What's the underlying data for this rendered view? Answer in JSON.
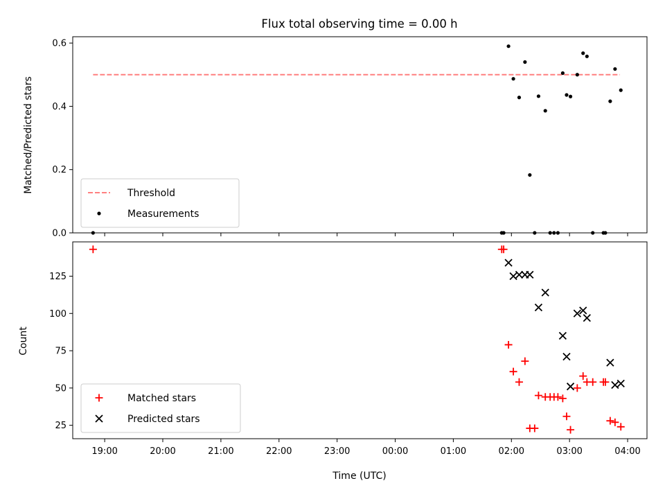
{
  "chart_data": [
    {
      "type": "scatter",
      "title": "Flux total observing time = 0.00 h",
      "xlabel": "",
      "ylabel": "Matched/Predicted stars",
      "xlim": [
        "18:27",
        "04:20"
      ],
      "ylim": [
        0,
        0.62
      ],
      "y_ticks": [
        "0.0",
        "0.2",
        "0.4",
        "0.6"
      ],
      "legend": "lower-left",
      "series": [
        {
          "name": "Threshold",
          "kind": "dashed-line",
          "color": "#ff7f7f",
          "x": [
            "18:48",
            "03:52"
          ],
          "y": [
            0.5,
            0.5
          ]
        },
        {
          "name": "Measurements",
          "kind": "dot",
          "color": "#000000",
          "points": [
            [
              "18:48",
              0.0
            ],
            [
              "01:50",
              0.0
            ],
            [
              "01:52",
              0.0
            ],
            [
              "01:57",
              0.59
            ],
            [
              "02:02",
              0.487
            ],
            [
              "02:08",
              0.428
            ],
            [
              "02:14",
              0.54
            ],
            [
              "02:19",
              0.183
            ],
            [
              "02:24",
              0.0
            ],
            [
              "02:28",
              0.432
            ],
            [
              "02:35",
              0.386
            ],
            [
              "02:40",
              0.0
            ],
            [
              "02:44",
              0.0
            ],
            [
              "02:48",
              0.0
            ],
            [
              "02:53",
              0.505
            ],
            [
              "02:57",
              0.436
            ],
            [
              "03:01",
              0.431
            ],
            [
              "03:08",
              0.5
            ],
            [
              "03:14",
              0.568
            ],
            [
              "03:18",
              0.558
            ],
            [
              "03:24",
              0.0
            ],
            [
              "03:35",
              0.0
            ],
            [
              "03:37",
              0.0
            ],
            [
              "03:42",
              0.416
            ],
            [
              "03:47",
              0.518
            ],
            [
              "03:53",
              0.451
            ]
          ]
        }
      ]
    },
    {
      "type": "scatter",
      "title": "",
      "xlabel": "Time (UTC)",
      "ylabel": "Count",
      "xlim": [
        "18:27",
        "04:20"
      ],
      "ylim": [
        16,
        148
      ],
      "y_ticks": [
        "25",
        "50",
        "75",
        "100",
        "125"
      ],
      "x_ticks": [
        "19:00",
        "20:00",
        "21:00",
        "22:00",
        "23:00",
        "00:00",
        "01:00",
        "02:00",
        "03:00",
        "04:00"
      ],
      "legend": "lower-left",
      "series": [
        {
          "name": "Matched stars",
          "kind": "plus",
          "color": "#ff0000",
          "points": [
            [
              "18:48",
              143
            ],
            [
              "01:50",
              143
            ],
            [
              "01:52",
              143
            ],
            [
              "01:57",
              79
            ],
            [
              "02:02",
              61
            ],
            [
              "02:08",
              54
            ],
            [
              "02:14",
              68
            ],
            [
              "02:19",
              23
            ],
            [
              "02:24",
              23
            ],
            [
              "02:28",
              45
            ],
            [
              "02:35",
              44
            ],
            [
              "02:40",
              44
            ],
            [
              "02:44",
              44
            ],
            [
              "02:48",
              44
            ],
            [
              "02:53",
              43
            ],
            [
              "02:57",
              31
            ],
            [
              "03:01",
              22
            ],
            [
              "03:08",
              50
            ],
            [
              "03:14",
              58
            ],
            [
              "03:18",
              54
            ],
            [
              "03:24",
              54
            ],
            [
              "03:35",
              54
            ],
            [
              "03:37",
              54
            ],
            [
              "03:42",
              28
            ],
            [
              "03:47",
              27
            ],
            [
              "03:53",
              24
            ]
          ]
        },
        {
          "name": "Predicted stars",
          "kind": "cross",
          "color": "#000000",
          "points": [
            [
              "01:57",
              134
            ],
            [
              "02:02",
              125
            ],
            [
              "02:08",
              126
            ],
            [
              "02:14",
              126
            ],
            [
              "02:19",
              126
            ],
            [
              "02:28",
              104
            ],
            [
              "02:35",
              114
            ],
            [
              "02:53",
              85
            ],
            [
              "02:57",
              71
            ],
            [
              "03:01",
              51
            ],
            [
              "03:08",
              100
            ],
            [
              "03:14",
              102
            ],
            [
              "03:18",
              97
            ],
            [
              "03:42",
              67
            ],
            [
              "03:47",
              52
            ],
            [
              "03:53",
              53
            ]
          ]
        }
      ]
    }
  ]
}
